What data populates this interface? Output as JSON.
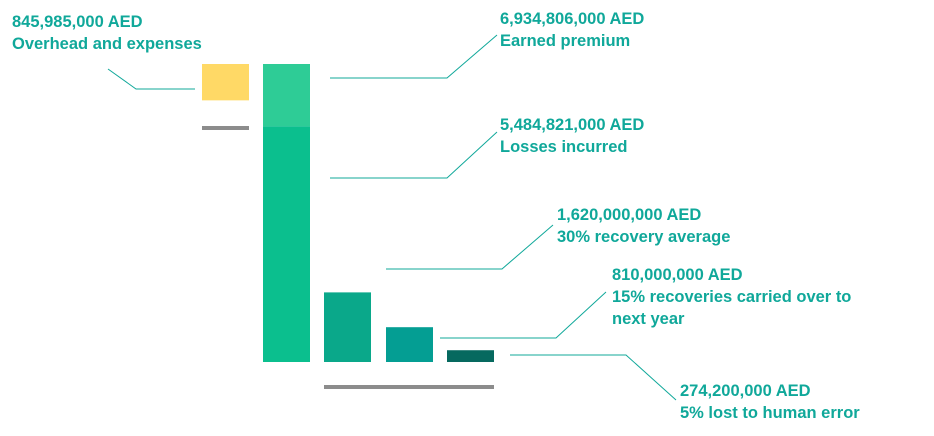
{
  "chart_data": {
    "type": "bar",
    "title": "",
    "unit": "AED",
    "stages": [
      {
        "id": "overhead",
        "value": 845985000,
        "value_label": "845,985,000 AED",
        "lines": [
          "Overhead and expenses"
        ],
        "color": "#ffd966"
      },
      {
        "id": "earned-premium",
        "value": 6934806000,
        "value_label": "6,934,806,000 AED",
        "lines": [
          "Earned premium"
        ],
        "color": "#2ecc96"
      },
      {
        "id": "losses-incurred",
        "value": 5484821000,
        "value_label": "5,484,821,000 AED",
        "lines": [
          "Losses incurred"
        ],
        "color": "#0bbf8e"
      },
      {
        "id": "recovery-average",
        "value": 1620000000,
        "value_label": "1,620,000,000 AED",
        "lines": [
          "30% recovery average"
        ],
        "color": "#0aa88a"
      },
      {
        "id": "recoveries-carried-over",
        "value": 810000000,
        "value_label": "810,000,000 AED",
        "lines": [
          "15% recoveries carried over to",
          "next year"
        ],
        "color": "#049e93"
      },
      {
        "id": "lost-human-error",
        "value": 274200000,
        "value_label": "274,200,000 AED",
        "lines": [
          "5% lost to human error"
        ],
        "color": "#06695f"
      }
    ],
    "label_color": "#10a89a",
    "connector_color": "#10a89a",
    "baseline_color": "#8c8c8c"
  }
}
